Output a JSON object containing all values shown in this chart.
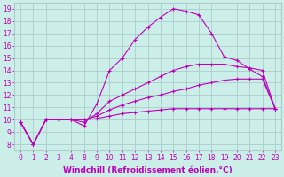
{
  "background_color": "#cceee8",
  "grid_color": "#aacccc",
  "line_color": "#bb00bb",
  "marker": "+",
  "markersize": 3,
  "linewidth": 0.8,
  "xlabel": "Windchill (Refroidissement éolien,°C)",
  "xlabel_fontsize": 6.5,
  "tick_fontsize": 5.5,
  "ylabel_ticks": [
    8,
    9,
    10,
    11,
    12,
    13,
    14,
    15,
    16,
    17,
    18,
    19
  ],
  "xtick_labels": [
    "0",
    "1",
    "2",
    "3",
    "4",
    "",
    "",
    "",
    "8",
    "9",
    "10",
    "11",
    "12",
    "13",
    "14",
    "15",
    "16",
    "17",
    "18",
    "19",
    "20",
    "21",
    "22",
    "23"
  ],
  "xlim": [
    -0.5,
    23.5
  ],
  "ylim": [
    7.5,
    19.5
  ],
  "series": [
    {
      "x": [
        0,
        1,
        2,
        3,
        4,
        8,
        9,
        10,
        11,
        12,
        13,
        14,
        15,
        16,
        17,
        18,
        19,
        20,
        21,
        22,
        23
      ],
      "y": [
        9.8,
        8.0,
        10.0,
        10.0,
        10.0,
        9.5,
        11.3,
        14.0,
        15.0,
        16.5,
        17.5,
        18.3,
        19.0,
        18.8,
        18.5,
        17.0,
        15.1,
        14.8,
        14.1,
        13.5,
        10.9
      ]
    },
    {
      "x": [
        0,
        1,
        2,
        3,
        4,
        8,
        9,
        10,
        11,
        12,
        13,
        14,
        15,
        16,
        17,
        18,
        19,
        20,
        21,
        22,
        23
      ],
      "y": [
        9.8,
        8.0,
        10.0,
        10.0,
        10.0,
        9.8,
        10.5,
        11.5,
        12.0,
        12.5,
        13.0,
        13.5,
        14.0,
        14.3,
        14.5,
        14.5,
        14.5,
        14.3,
        14.2,
        14.0,
        10.9
      ]
    },
    {
      "x": [
        0,
        1,
        2,
        3,
        4,
        8,
        9,
        10,
        11,
        12,
        13,
        14,
        15,
        16,
        17,
        18,
        19,
        20,
        21,
        22,
        23
      ],
      "y": [
        9.8,
        8.0,
        10.0,
        10.0,
        10.0,
        10.0,
        10.3,
        10.8,
        11.2,
        11.5,
        11.8,
        12.0,
        12.3,
        12.5,
        12.8,
        13.0,
        13.2,
        13.3,
        13.3,
        13.3,
        10.9
      ]
    },
    {
      "x": [
        0,
        1,
        2,
        3,
        4,
        8,
        9,
        10,
        11,
        12,
        13,
        14,
        15,
        16,
        17,
        18,
        19,
        20,
        21,
        22,
        23
      ],
      "y": [
        9.8,
        8.0,
        10.0,
        10.0,
        10.0,
        10.0,
        10.1,
        10.3,
        10.5,
        10.6,
        10.7,
        10.8,
        10.9,
        10.9,
        10.9,
        10.9,
        10.9,
        10.9,
        10.9,
        10.9,
        10.9
      ]
    }
  ]
}
